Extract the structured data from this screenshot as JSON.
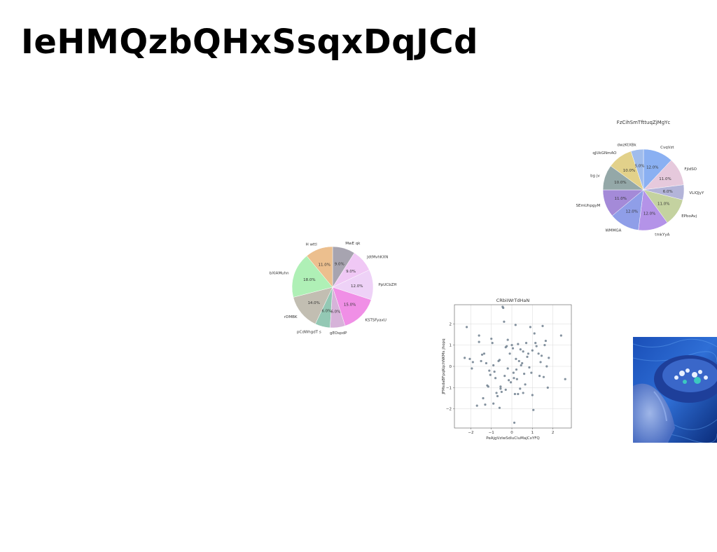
{
  "page": {
    "title": "IeHMQzbQHxSsqxDqJCd"
  },
  "chart_data": [
    {
      "type": "pie",
      "title": "",
      "labels": [
        "MwE qk",
        "JdtMvhKXN",
        "PpUCbZH",
        "KSTSFyaxU",
        "gEOspdP",
        "pCdWhgdT s",
        "rDMBK",
        "bXIAMuhn",
        "H wttl"
      ],
      "values": [
        9.0,
        9.0,
        12.0,
        15.0,
        6.0,
        6.0,
        14.0,
        18.0,
        11.0
      ],
      "pct_labels": [
        "9.0%",
        "9.0%",
        "12.0%",
        "15.0%",
        "6.0%",
        "6.0%",
        "14.0%",
        "18.0%",
        "11.0%"
      ],
      "colors": [
        "#a7a4b0",
        "#f0c8f5",
        "#eed2f7",
        "#f08fe6",
        "#d6b3d9",
        "#93c8b4",
        "#c2beb2",
        "#aff0b6",
        "#ecbf8e"
      ]
    },
    {
      "type": "pie",
      "title": "FzCihSmTfttuqZjMgYc",
      "labels": [
        "CvqVzt",
        "FjIdSO",
        "VLIQJyY",
        "EPboAvj",
        "tmkYyA",
        "WMMGA",
        "SEmUhpgyM",
        "bg jv",
        "qJUkGNmAO",
        "dwzKtXBk"
      ],
      "values": [
        12.0,
        11.0,
        6.0,
        11.0,
        12.0,
        12.0,
        11.0,
        10.0,
        10.0,
        5.0
      ],
      "pct_labels": [
        "12.0%",
        "11.0%",
        "6.0%",
        "11.0%",
        "12.0%",
        "12.0%",
        "11.0%",
        "10.0%",
        "10.0%",
        "5.0%"
      ],
      "colors": [
        "#8ab0f2",
        "#e6c9dc",
        "#b3b4d9",
        "#c4d2a0",
        "#b493e8",
        "#8f9ee8",
        "#a48ad8",
        "#94a8a8",
        "#e2d18a",
        "#a0bcec"
      ]
    },
    {
      "type": "scatter",
      "title": "CRbiIWrTdHaN",
      "xlabel": "PeAjgVzlwSdluCluMajCxYFQ",
      "ylabel": "JFMsdaBFpqKqchNKMs jhopq",
      "xlim": [
        -2.8,
        2.9
      ],
      "ylim": [
        -2.9,
        2.9
      ],
      "xticks": [
        -2,
        -1,
        0,
        1,
        2
      ],
      "yticks": [
        -2,
        -1,
        0,
        1,
        2
      ],
      "grid": true,
      "color": "#6f7f8e",
      "points": [
        [
          -2.2,
          1.85
        ],
        [
          -2.3,
          0.4
        ],
        [
          -2.05,
          0.35
        ],
        [
          -1.9,
          0.2
        ],
        [
          -1.95,
          -0.1
        ],
        [
          -1.6,
          1.15
        ],
        [
          -1.6,
          1.45
        ],
        [
          -1.5,
          0.25
        ],
        [
          -1.45,
          0.55
        ],
        [
          -1.35,
          0.6
        ],
        [
          -1.25,
          0.15
        ],
        [
          -1.2,
          -0.9
        ],
        [
          -1.15,
          -0.95
        ],
        [
          -1.1,
          -0.2
        ],
        [
          -1.05,
          -0.4
        ],
        [
          -1.0,
          1.3
        ],
        [
          -0.95,
          1.1
        ],
        [
          -0.9,
          0.05
        ],
        [
          -0.85,
          -0.25
        ],
        [
          -0.8,
          -0.55
        ],
        [
          -0.75,
          -1.25
        ],
        [
          -0.7,
          -1.4
        ],
        [
          -0.65,
          0.25
        ],
        [
          -0.6,
          0.3
        ],
        [
          -0.55,
          -1.05
        ],
        [
          -0.5,
          -1.2
        ],
        [
          -0.45,
          2.8
        ],
        [
          -0.42,
          2.75
        ],
        [
          -0.38,
          2.1
        ],
        [
          -0.35,
          -0.45
        ],
        [
          -0.3,
          0.9
        ],
        [
          -0.25,
          0.95
        ],
        [
          -0.2,
          -0.1
        ],
        [
          -0.15,
          -0.65
        ],
        [
          -0.1,
          0.6
        ],
        [
          -0.05,
          -0.75
        ],
        [
          0.0,
          1.0
        ],
        [
          0.05,
          0.85
        ],
        [
          0.08,
          -0.3
        ],
        [
          0.1,
          -0.55
        ],
        [
          0.12,
          -2.65
        ],
        [
          0.15,
          -1.3
        ],
        [
          0.18,
          1.95
        ],
        [
          0.2,
          0.35
        ],
        [
          0.22,
          -0.15
        ],
        [
          0.25,
          -0.6
        ],
        [
          0.3,
          1.05
        ],
        [
          0.35,
          0.25
        ],
        [
          0.4,
          -1.05
        ],
        [
          0.42,
          0.8
        ],
        [
          0.45,
          0.05
        ],
        [
          0.5,
          0.15
        ],
        [
          0.55,
          -1.25
        ],
        [
          0.6,
          -0.35
        ],
        [
          0.65,
          -0.85
        ],
        [
          0.7,
          1.1
        ],
        [
          0.75,
          0.45
        ],
        [
          0.8,
          0.6
        ],
        [
          0.85,
          -0.05
        ],
        [
          0.9,
          1.85
        ],
        [
          0.95,
          -0.3
        ],
        [
          1.0,
          0.75
        ],
        [
          1.05,
          -2.05
        ],
        [
          1.1,
          1.55
        ],
        [
          1.15,
          1.1
        ],
        [
          1.2,
          0.95
        ],
        [
          1.3,
          0.6
        ],
        [
          1.35,
          -0.45
        ],
        [
          1.4,
          0.2
        ],
        [
          1.45,
          0.5
        ],
        [
          1.5,
          1.9
        ],
        [
          1.55,
          -0.5
        ],
        [
          1.6,
          1.0
        ],
        [
          1.65,
          1.2
        ],
        [
          1.7,
          0.0
        ],
        [
          1.75,
          -1.0
        ],
        [
          1.8,
          0.4
        ],
        [
          2.4,
          1.45
        ],
        [
          2.6,
          -0.6
        ],
        [
          -1.3,
          -1.8
        ],
        [
          -1.4,
          -1.5
        ],
        [
          -0.9,
          -1.75
        ],
        [
          -0.6,
          -1.95
        ],
        [
          -0.3,
          -1.1
        ],
        [
          0.3,
          -1.3
        ],
        [
          0.55,
          0.7
        ],
        [
          -0.2,
          1.25
        ],
        [
          -0.55,
          -0.95
        ],
        [
          -1.7,
          -1.85
        ],
        [
          1.0,
          -1.35
        ]
      ]
    }
  ],
  "photo": {
    "icon": "blue-tinted-photo"
  }
}
